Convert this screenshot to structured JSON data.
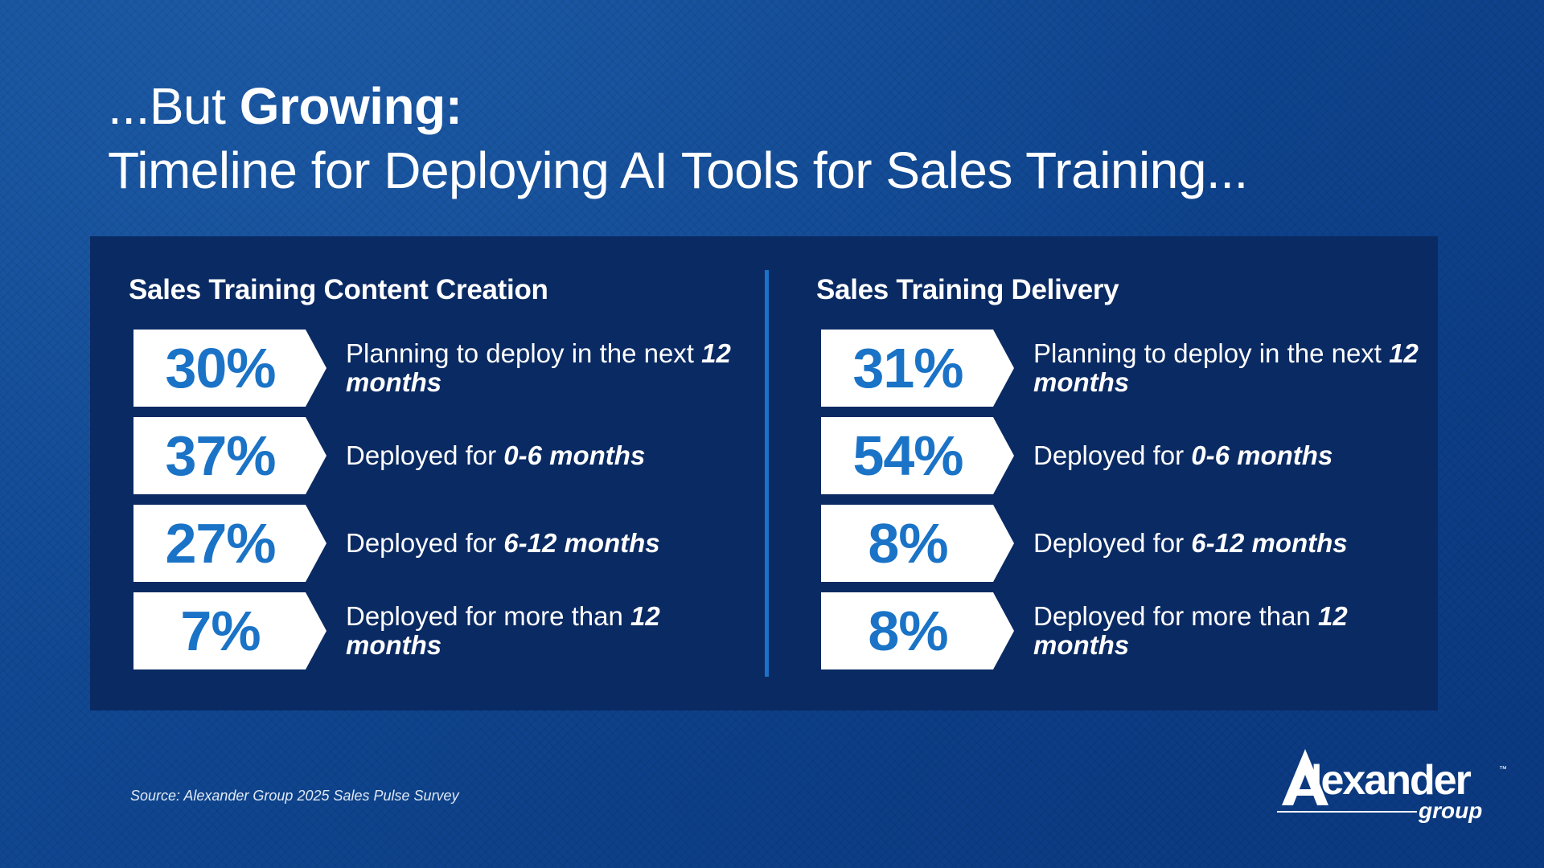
{
  "title": {
    "line1_prefix": "...But ",
    "line1_bold": "Growing:",
    "line2": "Timeline for Deploying AI Tools for Sales Training..."
  },
  "content_creation": {
    "heading": "Sales Training Content Creation",
    "rows": [
      {
        "percent": "30%",
        "text": "Planning to deploy in the next ",
        "emphasis": "12 months"
      },
      {
        "percent": "37%",
        "text": "Deployed for ",
        "emphasis": "0-6 months"
      },
      {
        "percent": "27%",
        "text": "Deployed for ",
        "emphasis": "6-12 months"
      },
      {
        "percent": "7%",
        "text": "Deployed for more than ",
        "emphasis": "12 months"
      }
    ]
  },
  "delivery": {
    "heading": "Sales Training Delivery",
    "rows": [
      {
        "percent": "31%",
        "text": "Planning to deploy in the next ",
        "emphasis": "12 months"
      },
      {
        "percent": "54%",
        "text": "Deployed for ",
        "emphasis": "0-6 months"
      },
      {
        "percent": "8%",
        "text": "Deployed for ",
        "emphasis": "6-12 months"
      },
      {
        "percent": "8%",
        "text": "Deployed for more than ",
        "emphasis": "12 months"
      }
    ]
  },
  "source": "Source:  Alexander Group 2025 Sales Pulse Survey",
  "logo": {
    "name": "lexander",
    "tm": "™",
    "sub": "group"
  },
  "colors": {
    "panel": "#0a2a63",
    "accent": "#1a73c6",
    "background": "#114a93"
  }
}
